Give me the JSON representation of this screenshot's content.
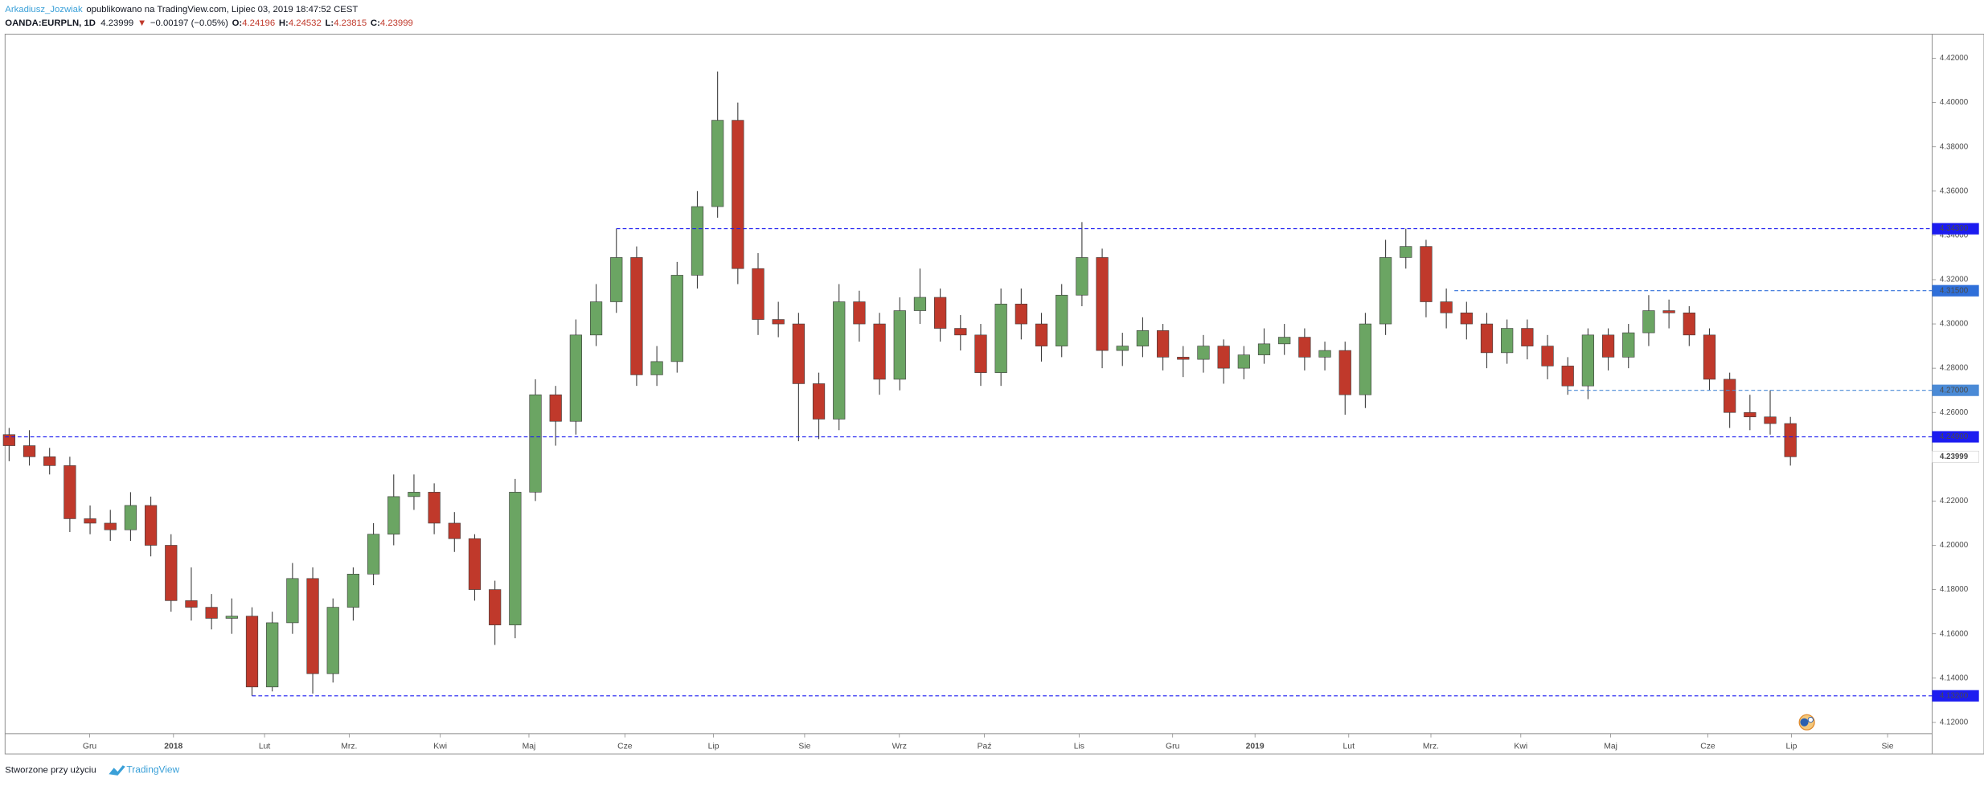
{
  "header": {
    "author": "Arkadiusz_Jozwiak",
    "published": "opublikowano na TradingView.com, Lipiec 03, 2019 18:47:52 CEST",
    "symbol": "OANDA:EURPLN, 1D",
    "last": "4.23999",
    "arrow": "▼",
    "change": "−0.00197 (−0.05%)",
    "open_label": "O:",
    "open": "4.24196",
    "high_label": "H:",
    "high": "4.24532",
    "low_label": "L:",
    "low": "4.23815",
    "close_label": "C:",
    "close": "4.23999"
  },
  "footer": {
    "text": "Stworzone przy użyciu",
    "brand": "TradingView"
  },
  "chart_data": {
    "type": "candlestick",
    "x": [
      1,
      6,
      11,
      16,
      21,
      26,
      31,
      36,
      41,
      46,
      51,
      56,
      61,
      66,
      71,
      76,
      81,
      86,
      91,
      96,
      101,
      106,
      111,
      116,
      121,
      126,
      131,
      136,
      141,
      146,
      151,
      156,
      161,
      166,
      171,
      176,
      181,
      186,
      191,
      196,
      201,
      206,
      211,
      216,
      221,
      226,
      231,
      236,
      241,
      246,
      251,
      256,
      261,
      266,
      271,
      276,
      281,
      286,
      291,
      296,
      301,
      306,
      311,
      316,
      321,
      326,
      331,
      336,
      341,
      346,
      351,
      356,
      361,
      366,
      371,
      376,
      381,
      386,
      391,
      396,
      401,
      406,
      411,
      416,
      421,
      426,
      431,
      436,
      441
    ],
    "open": [
      4.25,
      4.245,
      4.24,
      4.236,
      4.212,
      4.21,
      4.207,
      4.218,
      4.2,
      4.175,
      4.172,
      4.167,
      4.168,
      4.136,
      4.165,
      4.185,
      4.142,
      4.172,
      4.187,
      4.205,
      4.222,
      4.224,
      4.21,
      4.203,
      4.18,
      4.164,
      4.224,
      4.268,
      4.256,
      4.295,
      4.31,
      4.33,
      4.277,
      4.283,
      4.322,
      4.353,
      4.392,
      4.325,
      4.302,
      4.3,
      4.273,
      4.257,
      4.31,
      4.3,
      4.275,
      4.306,
      4.312,
      4.298,
      4.295,
      4.278,
      4.309,
      4.3,
      4.29,
      4.313,
      4.33,
      4.288,
      4.29,
      4.297,
      4.285,
      4.284,
      4.29,
      4.28,
      4.286,
      4.291,
      4.294,
      4.285,
      4.288,
      4.268,
      4.3,
      4.33,
      4.335,
      4.31,
      4.305,
      4.3,
      4.287,
      4.298,
      4.29,
      4.281,
      4.272,
      4.295,
      4.285,
      4.296,
      4.306,
      4.305,
      4.295,
      4.275,
      4.26,
      4.258,
      4.255
    ],
    "high": [
      4.253,
      4.252,
      4.244,
      4.24,
      4.218,
      4.216,
      4.224,
      4.222,
      4.205,
      4.19,
      4.178,
      4.176,
      4.172,
      4.17,
      4.192,
      4.19,
      4.176,
      4.19,
      4.21,
      4.232,
      4.232,
      4.228,
      4.215,
      4.205,
      4.184,
      4.23,
      4.275,
      4.272,
      4.302,
      4.318,
      4.343,
      4.335,
      4.29,
      4.328,
      4.36,
      4.414,
      4.4,
      4.332,
      4.31,
      4.305,
      4.278,
      4.318,
      4.315,
      4.305,
      4.312,
      4.325,
      4.316,
      4.304,
      4.3,
      4.316,
      4.316,
      4.305,
      4.318,
      4.346,
      4.334,
      4.296,
      4.303,
      4.3,
      4.29,
      4.295,
      4.293,
      4.29,
      4.298,
      4.3,
      4.298,
      4.292,
      4.292,
      4.305,
      4.338,
      4.343,
      4.338,
      4.316,
      4.31,
      4.305,
      4.302,
      4.302,
      4.295,
      4.285,
      4.298,
      4.298,
      4.3,
      4.313,
      4.311,
      4.308,
      4.298,
      4.278,
      4.268,
      4.27,
      4.258
    ],
    "low": [
      4.238,
      4.236,
      4.232,
      4.206,
      4.205,
      4.202,
      4.202,
      4.195,
      4.17,
      4.166,
      4.162,
      4.16,
      4.132,
      4.134,
      4.16,
      4.133,
      4.138,
      4.166,
      4.182,
      4.2,
      4.216,
      4.205,
      4.197,
      4.175,
      4.155,
      4.158,
      4.22,
      4.245,
      4.25,
      4.29,
      4.305,
      4.272,
      4.272,
      4.278,
      4.316,
      4.348,
      4.318,
      4.295,
      4.294,
      4.247,
      4.248,
      4.252,
      4.292,
      4.268,
      4.27,
      4.3,
      4.292,
      4.288,
      4.272,
      4.272,
      4.293,
      4.283,
      4.285,
      4.308,
      4.28,
      4.281,
      4.285,
      4.279,
      4.276,
      4.278,
      4.273,
      4.275,
      4.282,
      4.286,
      4.279,
      4.279,
      4.259,
      4.262,
      4.295,
      4.325,
      4.303,
      4.298,
      4.293,
      4.28,
      4.282,
      4.284,
      4.275,
      4.268,
      4.266,
      4.279,
      4.28,
      4.29,
      4.298,
      4.29,
      4.27,
      4.253,
      4.252,
      4.25,
      4.236
    ],
    "close": [
      4.245,
      4.24,
      4.236,
      4.212,
      4.21,
      4.207,
      4.218,
      4.2,
      4.175,
      4.172,
      4.167,
      4.168,
      4.136,
      4.165,
      4.185,
      4.142,
      4.172,
      4.187,
      4.205,
      4.222,
      4.224,
      4.21,
      4.203,
      4.18,
      4.164,
      4.224,
      4.268,
      4.256,
      4.295,
      4.31,
      4.33,
      4.277,
      4.283,
      4.322,
      4.353,
      4.392,
      4.325,
      4.302,
      4.3,
      4.273,
      4.257,
      4.31,
      4.3,
      4.275,
      4.306,
      4.312,
      4.298,
      4.295,
      4.278,
      4.309,
      4.3,
      4.29,
      4.313,
      4.33,
      4.288,
      4.29,
      4.297,
      4.285,
      4.284,
      4.29,
      4.28,
      4.286,
      4.291,
      4.294,
      4.285,
      4.288,
      4.268,
      4.3,
      4.33,
      4.335,
      4.31,
      4.305,
      4.3,
      4.287,
      4.298,
      4.29,
      4.281,
      4.272,
      4.295,
      4.285,
      4.296,
      4.306,
      4.305,
      4.295,
      4.275,
      4.26,
      4.258,
      4.255,
      4.24
    ],
    "colors": {
      "up": "#6ba563",
      "down": "#c0392b",
      "wick": "#3d3d3d"
    },
    "xlim": [
      0,
      476
    ],
    "xticks": [
      {
        "value": 20.9,
        "label": "Gru"
      },
      {
        "value": 41.6,
        "label": "2018"
      },
      {
        "value": 64.1,
        "label": "Lut"
      },
      {
        "value": 85,
        "label": "Mrz."
      },
      {
        "value": 107.5,
        "label": "Kwi"
      },
      {
        "value": 129.4,
        "label": "Maj"
      },
      {
        "value": 153.1,
        "label": "Cze"
      },
      {
        "value": 175,
        "label": "Lip"
      },
      {
        "value": 197.5,
        "label": "Sie"
      },
      {
        "value": 220.9,
        "label": "Wrz"
      },
      {
        "value": 241.9,
        "label": "Paź"
      },
      {
        "value": 265.3,
        "label": "Lis"
      },
      {
        "value": 288.4,
        "label": "Gru"
      },
      {
        "value": 308.75,
        "label": "2019"
      },
      {
        "value": 331.9,
        "label": "Lut"
      },
      {
        "value": 352.2,
        "label": "Mrz."
      },
      {
        "value": 374.4,
        "label": "Kwi"
      },
      {
        "value": 396.6,
        "label": "Maj"
      },
      {
        "value": 420.6,
        "label": "Cze"
      },
      {
        "value": 441.25,
        "label": "Lip"
      },
      {
        "value": 465,
        "label": "Sie"
      }
    ],
    "ylim": [
      4.1149,
      4.4309
    ],
    "yticks": [
      {
        "value": 4.12,
        "label": "4.12000"
      },
      {
        "value": 4.14,
        "label": "4.14000"
      },
      {
        "value": 4.16,
        "label": "4.16000"
      },
      {
        "value": 4.18,
        "label": "4.18000"
      },
      {
        "value": 4.2,
        "label": "4.20000"
      },
      {
        "value": 4.22,
        "label": "4.22000"
      },
      {
        "value": 4.24,
        "label": "4.24000"
      },
      {
        "value": 4.26,
        "label": "4.26000"
      },
      {
        "value": 4.28,
        "label": "4.28000"
      },
      {
        "value": 4.3,
        "label": "4.30000"
      },
      {
        "value": 4.32,
        "label": "4.32000"
      },
      {
        "value": 4.34,
        "label": "4.34000"
      },
      {
        "value": 4.36,
        "label": "4.36000"
      },
      {
        "value": 4.38,
        "label": "4.38000"
      },
      {
        "value": 4.4,
        "label": "4.40000"
      },
      {
        "value": 4.42,
        "label": "4.42000"
      }
    ],
    "levels": [
      {
        "value": 4.343,
        "label": "4.34300",
        "start": 151,
        "color": "#1c1cf0"
      },
      {
        "value": 4.315,
        "label": "4.31500",
        "start": 358,
        "color": "#2f6fd9"
      },
      {
        "value": 4.27,
        "label": "4.27000",
        "start": 386,
        "color": "#4a8ad6"
      },
      {
        "value": 4.249,
        "label": "4.24900",
        "start": 0,
        "color": "#1c1cf0"
      },
      {
        "value": 4.132,
        "label": "4.13200",
        "start": 61,
        "color": "#1c1cf0"
      }
    ],
    "last_price": 4.23999
  }
}
